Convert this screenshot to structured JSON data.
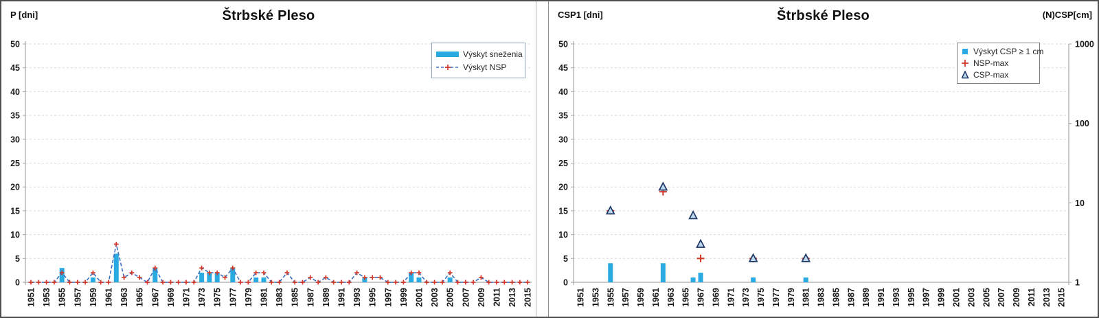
{
  "panels": [
    {
      "title": "Štrbské Pleso",
      "y_axis_title": "P [dni]",
      "legend": [
        {
          "label": "Výskyt sneženia",
          "swatch": "bar"
        },
        {
          "label": "Výskyt NSP",
          "swatch": "dashed-line-plus"
        }
      ]
    },
    {
      "title": "Štrbské Pleso",
      "y_axis_title": "CSP1 [dni]",
      "y2_axis_title": "(N)CSP[cm]",
      "legend": [
        {
          "label": "Výskyt CSP ≥ 1 cm",
          "swatch": "square"
        },
        {
          "label": "NSP-max",
          "swatch": "plus"
        },
        {
          "label": "CSP-max",
          "swatch": "triangle"
        }
      ]
    }
  ],
  "chart_data": [
    {
      "type": "bar",
      "subtype": "combo-bar-line",
      "title": "Štrbské Pleso",
      "ylabel": "P [dni]",
      "ylim": [
        0,
        50
      ],
      "ytick_step": 5,
      "x_range": [
        1951,
        2015
      ],
      "xtick_labels": [
        "1951",
        "1953",
        "1955",
        "1957",
        "1959",
        "1961",
        "1963",
        "1965",
        "1967",
        "1969",
        "1971",
        "1973",
        "1975",
        "1977",
        "1979",
        "1981",
        "1983",
        "1985",
        "1987",
        "1989",
        "1991",
        "1993",
        "1995",
        "1997",
        "1999",
        "2001",
        "2003",
        "2005",
        "2007",
        "2009",
        "2011",
        "2013",
        "2015"
      ],
      "grid": "horizontal-dashed",
      "legend_position": "top-right-inside",
      "series": [
        {
          "name": "Výskyt sneženia",
          "type": "bar",
          "points": {
            "1955": 3,
            "1959": 1,
            "1962": 6,
            "1967": 3,
            "1973": 2,
            "1974": 2,
            "1975": 2,
            "1977": 3,
            "1980": 1,
            "1981": 1,
            "1994": 1,
            "2000": 2,
            "2001": 1,
            "2005": 1
          }
        },
        {
          "name": "Výskyt NSP",
          "type": "line",
          "marker": "plus",
          "start_year": 1951,
          "values": [
            0,
            0,
            0,
            0,
            2,
            0,
            0,
            0,
            2,
            0,
            0,
            8,
            1,
            2,
            1,
            0,
            3,
            0,
            0,
            0,
            0,
            0,
            3,
            2,
            2,
            1,
            3,
            0,
            0,
            2,
            2,
            0,
            0,
            2,
            0,
            0,
            1,
            0,
            1,
            0,
            0,
            0,
            2,
            1,
            1,
            1,
            0,
            0,
            0,
            2,
            2,
            0,
            0,
            0,
            2,
            0,
            0,
            0,
            1,
            0,
            0,
            0,
            0,
            0,
            0
          ]
        }
      ]
    },
    {
      "type": "bar",
      "subtype": "combo-bar-scatter",
      "title": "Štrbské Pleso",
      "ylabel": "CSP1 [dni]",
      "y2label": "(N)CSP[cm]",
      "ylim": [
        0,
        50
      ],
      "ytick_step": 5,
      "y2_scale": "log",
      "y2_ticks": [
        1,
        10,
        100,
        1000
      ],
      "x_range": [
        1951,
        2015
      ],
      "xtick_labels": [
        "1951",
        "1953",
        "1955",
        "1957",
        "1959",
        "1961",
        "1963",
        "1965",
        "1967",
        "1969",
        "1971",
        "1973",
        "1975",
        "1977",
        "1979",
        "1981",
        "1983",
        "1985",
        "1987",
        "1989",
        "1991",
        "1993",
        "1995",
        "1997",
        "1999",
        "2001",
        "2003",
        "2005",
        "2007",
        "2009",
        "2011",
        "2013",
        "2015"
      ],
      "grid": "horizontal-dashed",
      "legend_position": "top-right-inside",
      "series": [
        {
          "name": "Výskyt CSP ≥ 1 cm",
          "type": "bar",
          "points": {
            "1955": 4,
            "1962": 4,
            "1966": 1,
            "1967": 2,
            "1974": 1,
            "1981": 1
          }
        },
        {
          "name": "NSP-max",
          "type": "scatter",
          "marker": "plus",
          "points": {
            "1955": 15,
            "1962": 19,
            "1967": 5,
            "1974": 5,
            "1981": 5
          }
        },
        {
          "name": "CSP-max",
          "type": "scatter",
          "marker": "triangle",
          "points": {
            "1955": 15,
            "1962": 20,
            "1966": 14,
            "1967": 8,
            "1974": 5,
            "1981": 5
          }
        }
      ]
    }
  ],
  "colors": {
    "bar": "#29abe2",
    "line": "#3a70c0",
    "plus": "#d0392b",
    "triangle_fill": "#bdd7ee",
    "triangle_edge": "#1f3864",
    "grid": "#d9d9d9",
    "axis": "#a6a6a6",
    "text": "#1a1a1a",
    "legend_text": "#262626"
  }
}
